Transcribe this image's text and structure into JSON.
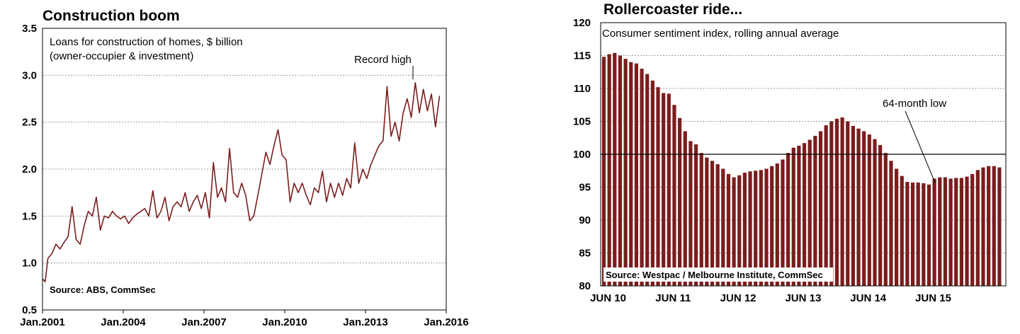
{
  "chart_data": [
    {
      "type": "line",
      "title": "Construction boom",
      "annotation_note": [
        "Loans for construction of homes, $ billion",
        "(owner-occupier & investment)"
      ],
      "peak_label": "Record high",
      "source": "Source: ABS, CommSec",
      "xlabel": "",
      "ylabel": "",
      "x_ticks": [
        "Jan.2001",
        "Jan.2004",
        "Jan.2007",
        "Jan.2010",
        "Jan.2013",
        "Jan.2016"
      ],
      "y_ticks": [
        "0.5",
        "1.0",
        "1.5",
        "2.0",
        "2.5",
        "3.0",
        "3.5"
      ],
      "ylim": [
        0.5,
        3.5
      ],
      "xlim": [
        2001.0,
        2016.0
      ],
      "grid": true,
      "color": "#7b1d1d",
      "series": [
        {
          "x": [
            2001.0,
            2001.1,
            2001.2,
            2001.35,
            2001.5,
            2001.65,
            2001.8,
            2001.95,
            2002.1,
            2002.25,
            2002.4,
            2002.55,
            2002.7,
            2002.85,
            2003.0,
            2003.15,
            2003.3,
            2003.45,
            2003.6,
            2003.75,
            2003.9,
            2004.05,
            2004.2,
            2004.35,
            2004.5,
            2004.65,
            2004.8,
            2004.95,
            2005.1,
            2005.25,
            2005.4,
            2005.55,
            2005.7,
            2005.85,
            2006.0,
            2006.15,
            2006.3,
            2006.45,
            2006.6,
            2006.75,
            2006.9,
            2007.05,
            2007.2,
            2007.35,
            2007.5,
            2007.65,
            2007.8,
            2007.95,
            2008.1,
            2008.25,
            2008.4,
            2008.55,
            2008.7,
            2008.85,
            2009.0,
            2009.15,
            2009.3,
            2009.45,
            2009.6,
            2009.75,
            2009.9,
            2010.05,
            2010.2,
            2010.35,
            2010.5,
            2010.65,
            2010.8,
            2010.95,
            2011.1,
            2011.25,
            2011.4,
            2011.55,
            2011.7,
            2011.85,
            2012.0,
            2012.15,
            2012.3,
            2012.45,
            2012.6,
            2012.75,
            2012.9,
            2013.05,
            2013.2,
            2013.35,
            2013.5,
            2013.65,
            2013.8,
            2013.95,
            2014.1,
            2014.25,
            2014.4,
            2014.55,
            2014.7,
            2014.85,
            2015.0,
            2015.15,
            2015.3,
            2015.45,
            2015.6,
            2015.75
          ],
          "y": [
            0.83,
            0.8,
            1.05,
            1.1,
            1.2,
            1.15,
            1.22,
            1.28,
            1.6,
            1.25,
            1.2,
            1.4,
            1.55,
            1.5,
            1.7,
            1.35,
            1.5,
            1.48,
            1.55,
            1.5,
            1.47,
            1.5,
            1.42,
            1.48,
            1.52,
            1.55,
            1.58,
            1.5,
            1.77,
            1.48,
            1.55,
            1.7,
            1.45,
            1.6,
            1.65,
            1.6,
            1.75,
            1.55,
            1.65,
            1.72,
            1.58,
            1.75,
            1.48,
            2.07,
            1.7,
            1.8,
            1.65,
            2.22,
            1.75,
            1.7,
            1.85,
            1.72,
            1.45,
            1.5,
            1.72,
            1.95,
            2.18,
            2.05,
            2.25,
            2.42,
            2.15,
            2.1,
            1.65,
            1.85,
            1.75,
            1.85,
            1.72,
            1.62,
            1.8,
            1.75,
            1.98,
            1.65,
            1.85,
            1.7,
            1.85,
            1.72,
            1.9,
            1.8,
            2.28,
            1.85,
            2.0,
            1.9,
            2.05,
            2.15,
            2.25,
            2.3,
            2.88,
            2.35,
            2.5,
            2.3,
            2.6,
            2.75,
            2.55,
            2.92,
            2.6,
            2.85,
            2.62,
            2.8,
            2.45,
            2.78
          ]
        }
      ]
    },
    {
      "type": "bar",
      "title": "Rollercoaster ride...",
      "annotation_note": [
        "Consumer sentiment index, rolling annual average"
      ],
      "low_label": "64-month low",
      "source": "Source: Westpac / Melbourne Institute, CommSec",
      "xlabel": "",
      "ylabel": "",
      "x_ticks": [
        "JUN 10",
        "JUN 11",
        "JUN 12",
        "JUN 13",
        "JUN 14",
        "JUN 15"
      ],
      "y_ticks": [
        "80",
        "85",
        "90",
        "95",
        "100",
        "105",
        "110",
        "115",
        "120"
      ],
      "ylim": [
        80,
        120
      ],
      "reference_line": 100,
      "grid": true,
      "color": "#7b1d1d",
      "values": [
        114.8,
        115.2,
        115.4,
        115.0,
        114.5,
        114.0,
        113.8,
        113.0,
        112.2,
        111.2,
        110.2,
        109.3,
        109.2,
        107.5,
        105.5,
        103.5,
        102.0,
        101.5,
        100.2,
        99.5,
        99.0,
        98.5,
        97.8,
        97.0,
        96.5,
        96.8,
        97.2,
        97.4,
        97.5,
        97.6,
        97.8,
        98.2,
        98.6,
        99.2,
        100.2,
        101.0,
        101.3,
        101.7,
        102.2,
        102.8,
        103.5,
        104.4,
        105.0,
        105.4,
        105.6,
        105.0,
        104.3,
        103.9,
        103.5,
        103.0,
        102.3,
        101.4,
        100.2,
        99.0,
        97.8,
        96.7,
        95.8,
        95.7,
        95.7,
        95.6,
        95.4,
        96.3,
        96.5,
        96.5,
        96.3,
        96.4,
        96.4,
        96.6,
        97.0,
        97.6,
        98.0,
        98.2,
        98.2,
        98.0
      ]
    }
  ]
}
